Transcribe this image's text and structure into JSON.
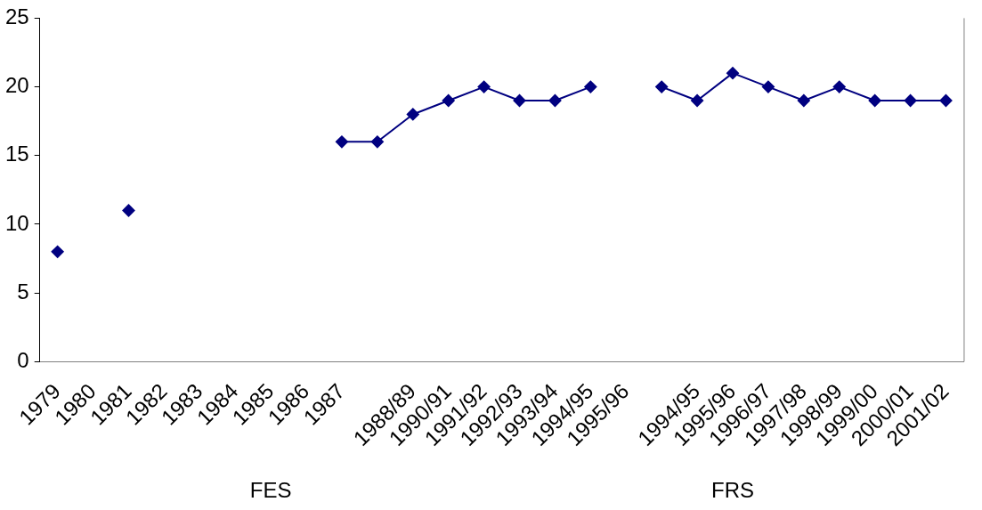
{
  "chart_data": {
    "type": "line",
    "categories": [
      "1979",
      "1980",
      "1981",
      "1982",
      "1983",
      "1984",
      "1985",
      "1986",
      "1987",
      null,
      "1988/89",
      "1990/91",
      "1991/92",
      "1992/93",
      "1993/94",
      "1994/95",
      "1995/96",
      null,
      "1994/95",
      "1995/96",
      "1996/97",
      "1997/98",
      "1998/99",
      "1999/00",
      "2000/01",
      "2001/02"
    ],
    "series": [
      {
        "color": "#000080",
        "values": [
          8,
          null,
          11,
          null,
          null,
          null,
          null,
          null,
          16,
          16,
          18,
          19,
          20,
          19,
          19,
          20,
          null,
          20,
          19,
          21,
          20,
          19,
          20,
          19,
          19,
          19
        ]
      }
    ],
    "ylim": [
      0,
      25
    ],
    "yticks": [
      0,
      5,
      10,
      15,
      20,
      25
    ],
    "grid": false,
    "legend": false,
    "marker": "diamond",
    "line_style": "solid",
    "annotations": [
      "FES",
      "FRS"
    ]
  }
}
